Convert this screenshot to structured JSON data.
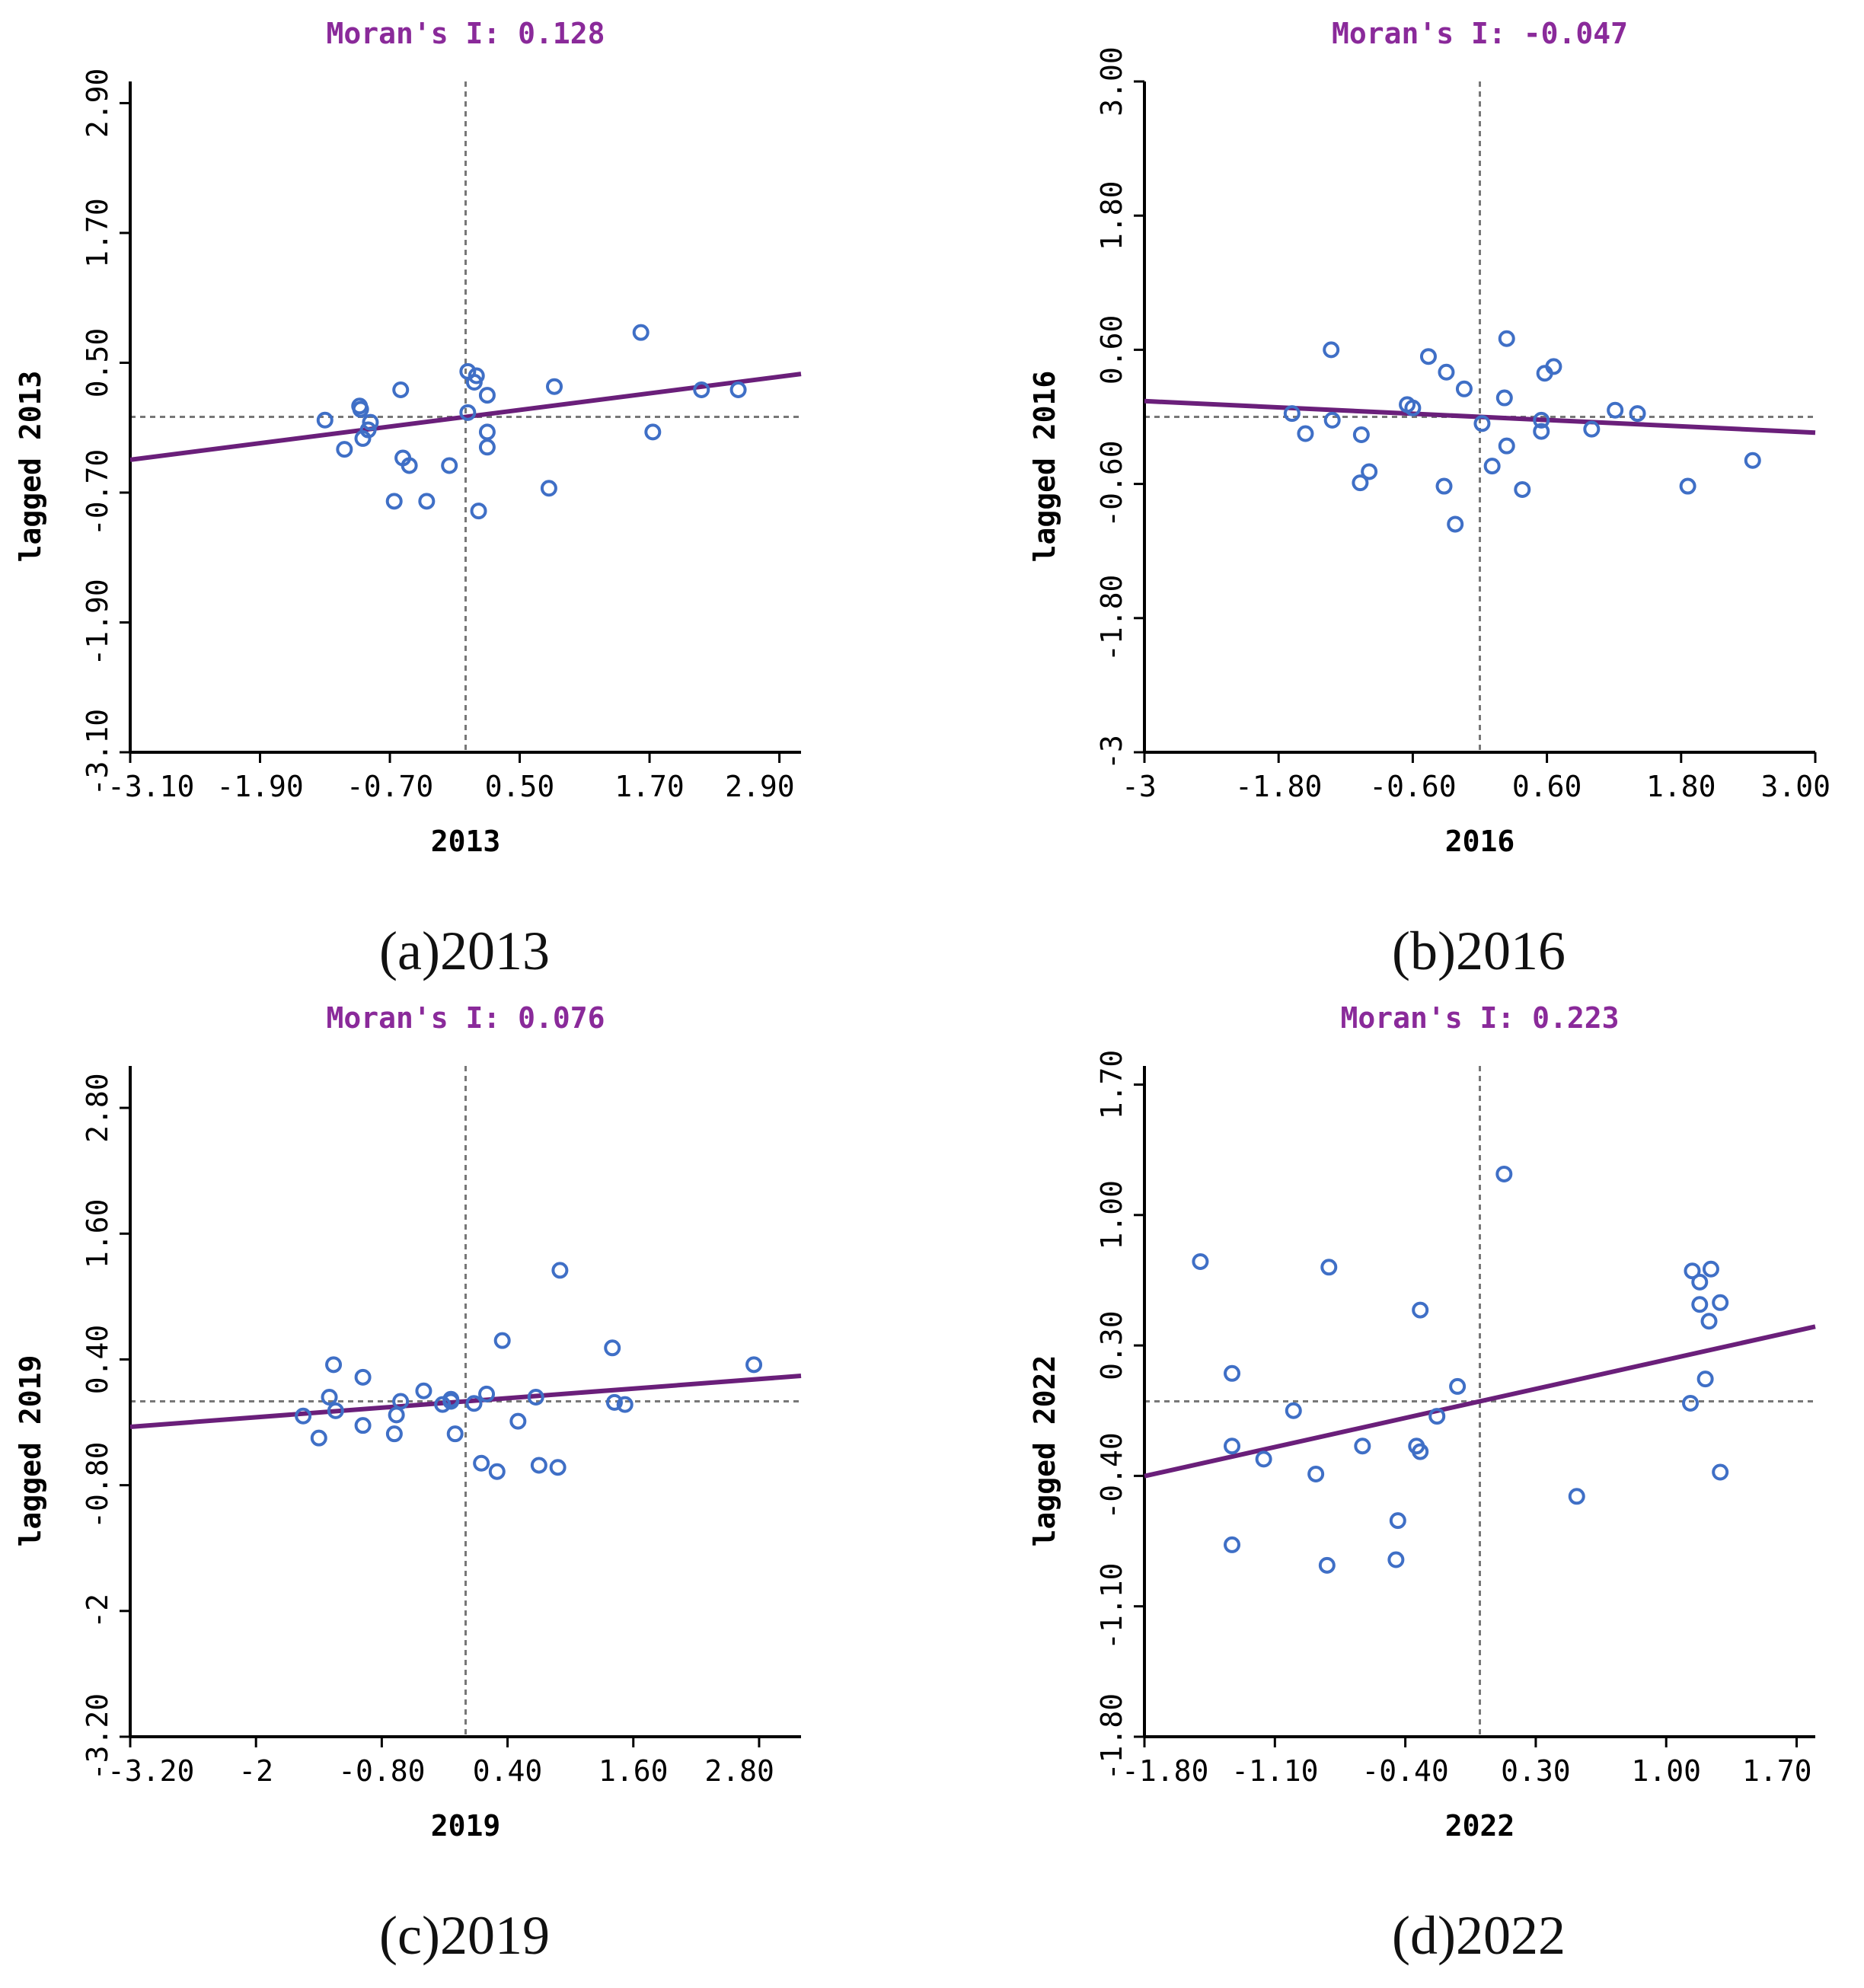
{
  "figure": {
    "panel_captions": [
      "(a)2013",
      "(b)2016",
      "(c)2019",
      "(d)2022"
    ]
  },
  "colors": {
    "point": "#3f6fc6",
    "regression": "#6a1f7a",
    "title": "#8a2a9a",
    "axis": "#000000",
    "reference_line": "#777777"
  },
  "chart_data": [
    {
      "type": "scatter",
      "title": "Moran's I: 0.128",
      "caption": "(a)2013",
      "xlabel": "2013",
      "ylabel": "lagged 2013",
      "xlim": [
        -3.1,
        3.1
      ],
      "ylim": [
        -3.1,
        3.1
      ],
      "xticks": [
        -3.1,
        -1.9,
        -0.7,
        0.5,
        1.7,
        2.9
      ],
      "xtick_labels": [
        "-3.10",
        "-1.90",
        "-0.70",
        "0.50",
        "1.70",
        "2.90"
      ],
      "yticks": [
        -3.1,
        -1.9,
        -0.7,
        0.5,
        1.7,
        2.9
      ],
      "ytick_labels": [
        "-3.10",
        "-1.90",
        "-0.70",
        "0.50",
        "1.70",
        "2.90"
      ],
      "moran_i": 0.128,
      "points": [
        {
          "x": -1.3,
          "y": -0.03
        },
        {
          "x": -1.12,
          "y": -0.3
        },
        {
          "x": -0.98,
          "y": 0.1
        },
        {
          "x": -0.97,
          "y": 0.07
        },
        {
          "x": -0.95,
          "y": -0.2
        },
        {
          "x": -0.9,
          "y": -0.12
        },
        {
          "x": -0.88,
          "y": -0.05
        },
        {
          "x": -0.6,
          "y": 0.25
        },
        {
          "x": -0.58,
          "y": -0.38
        },
        {
          "x": -0.52,
          "y": -0.45
        },
        {
          "x": -0.66,
          "y": -0.78
        },
        {
          "x": -0.36,
          "y": -0.78
        },
        {
          "x": -0.15,
          "y": -0.45
        },
        {
          "x": 0.02,
          "y": 0.42
        },
        {
          "x": 0.02,
          "y": 0.04
        },
        {
          "x": 0.1,
          "y": 0.38
        },
        {
          "x": 0.08,
          "y": 0.32
        },
        {
          "x": 0.2,
          "y": 0.2
        },
        {
          "x": 0.2,
          "y": -0.14
        },
        {
          "x": 0.2,
          "y": -0.28
        },
        {
          "x": 0.12,
          "y": -0.87
        },
        {
          "x": 0.82,
          "y": 0.28
        },
        {
          "x": 0.77,
          "y": -0.66
        },
        {
          "x": 1.62,
          "y": 0.78
        },
        {
          "x": 1.73,
          "y": -0.14
        },
        {
          "x": 2.18,
          "y": 0.25
        },
        {
          "x": 2.52,
          "y": 0.25
        }
      ],
      "fit": {
        "slope": 0.128,
        "intercept": 0.0
      }
    },
    {
      "type": "scatter",
      "title": "Moran's I: -0.047",
      "caption": "(b)2016",
      "xlabel": "2016",
      "ylabel": "lagged 2016",
      "xlim": [
        -3.0,
        3.0
      ],
      "ylim": [
        -3.0,
        3.0
      ],
      "xticks": [
        -3.0,
        -1.8,
        -0.6,
        0.6,
        1.8,
        3.0
      ],
      "xtick_labels": [
        "-3",
        "-1.80",
        "-0.60",
        "0.60",
        "1.80",
        "3.00"
      ],
      "yticks": [
        -3.0,
        -1.8,
        -0.6,
        0.6,
        1.8,
        3.0
      ],
      "ytick_labels": [
        "-3",
        "-1.80",
        "-0.60",
        "0.60",
        "1.80",
        "3.00"
      ],
      "moran_i": -0.047,
      "points": [
        {
          "x": -1.68,
          "y": 0.03
        },
        {
          "x": -1.56,
          "y": -0.15
        },
        {
          "x": -1.33,
          "y": 0.6
        },
        {
          "x": -1.32,
          "y": -0.03
        },
        {
          "x": -1.06,
          "y": -0.16
        },
        {
          "x": -1.07,
          "y": -0.59
        },
        {
          "x": -0.99,
          "y": -0.49
        },
        {
          "x": -0.65,
          "y": 0.11
        },
        {
          "x": -0.6,
          "y": 0.08
        },
        {
          "x": -0.46,
          "y": 0.54
        },
        {
          "x": -0.3,
          "y": 0.4
        },
        {
          "x": -0.14,
          "y": 0.25
        },
        {
          "x": -0.32,
          "y": -0.62
        },
        {
          "x": -0.22,
          "y": -0.96
        },
        {
          "x": 0.02,
          "y": -0.06
        },
        {
          "x": 0.11,
          "y": -0.44
        },
        {
          "x": 0.24,
          "y": 0.7
        },
        {
          "x": 0.22,
          "y": 0.17
        },
        {
          "x": 0.24,
          "y": -0.26
        },
        {
          "x": 0.38,
          "y": -0.65
        },
        {
          "x": 0.55,
          "y": -0.03
        },
        {
          "x": 0.55,
          "y": -0.13
        },
        {
          "x": 0.58,
          "y": 0.39
        },
        {
          "x": 0.66,
          "y": 0.45
        },
        {
          "x": 1.0,
          "y": -0.11
        },
        {
          "x": 1.21,
          "y": 0.06
        },
        {
          "x": 1.41,
          "y": 0.03
        },
        {
          "x": 1.86,
          "y": -0.62
        },
        {
          "x": 2.44,
          "y": -0.39
        }
      ],
      "fit": {
        "slope": -0.047,
        "intercept": 0.0
      }
    },
    {
      "type": "scatter",
      "title": "Moran's I: 0.076",
      "caption": "(c)2019",
      "xlabel": "2019",
      "ylabel": "lagged 2019",
      "xlim": [
        -3.2,
        3.2
      ],
      "ylim": [
        -3.2,
        3.2
      ],
      "xticks": [
        -3.2,
        -2.0,
        -0.8,
        0.4,
        1.6,
        2.8
      ],
      "xtick_labels": [
        "-3.20",
        "-2",
        "-0.80",
        "0.40",
        "1.60",
        "2.80"
      ],
      "yticks": [
        -3.2,
        -2.0,
        -0.8,
        0.4,
        1.6,
        2.8
      ],
      "ytick_labels": [
        "-3.20",
        "-2",
        "-0.80",
        "0.40",
        "1.60",
        "2.80"
      ],
      "moran_i": 0.076,
      "points": [
        {
          "x": -1.55,
          "y": -0.14
        },
        {
          "x": -1.4,
          "y": -0.35
        },
        {
          "x": -1.26,
          "y": 0.35
        },
        {
          "x": -1.3,
          "y": 0.04
        },
        {
          "x": -1.24,
          "y": -0.09
        },
        {
          "x": -0.98,
          "y": 0.23
        },
        {
          "x": -0.98,
          "y": -0.23
        },
        {
          "x": -0.68,
          "y": -0.31
        },
        {
          "x": -0.66,
          "y": -0.13
        },
        {
          "x": -0.62,
          "y": 0.0
        },
        {
          "x": -0.4,
          "y": 0.1
        },
        {
          "x": -0.22,
          "y": -0.03
        },
        {
          "x": -0.14,
          "y": 0.02
        },
        {
          "x": -0.14,
          "y": 0.0
        },
        {
          "x": -0.1,
          "y": -0.31
        },
        {
          "x": 0.08,
          "y": -0.02
        },
        {
          "x": 0.2,
          "y": 0.07
        },
        {
          "x": 0.15,
          "y": -0.59
        },
        {
          "x": 0.3,
          "y": -0.67
        },
        {
          "x": 0.35,
          "y": 0.58
        },
        {
          "x": 0.5,
          "y": -0.19
        },
        {
          "x": 0.67,
          "y": 0.04
        },
        {
          "x": 0.7,
          "y": -0.61
        },
        {
          "x": 0.88,
          "y": -0.63
        },
        {
          "x": 0.9,
          "y": 1.25
        },
        {
          "x": 1.4,
          "y": 0.51
        },
        {
          "x": 1.42,
          "y": -0.01
        },
        {
          "x": 1.52,
          "y": -0.03
        },
        {
          "x": 2.75,
          "y": 0.35
        }
      ],
      "fit": {
        "slope": 0.076,
        "intercept": 0.0
      }
    },
    {
      "type": "scatter",
      "title": "Moran's I: 0.223",
      "caption": "(d)2022",
      "xlabel": "2022",
      "ylabel": "lagged 2022",
      "xlim": [
        -1.8,
        1.8
      ],
      "ylim": [
        -1.8,
        1.8
      ],
      "xticks": [
        -1.8,
        -1.1,
        -0.4,
        0.3,
        1.0,
        1.7
      ],
      "xtick_labels": [
        "-1.80",
        "-1.10",
        "-0.40",
        "0.30",
        "1.00",
        "1.70"
      ],
      "yticks": [
        -1.8,
        -1.1,
        -0.4,
        0.3,
        1.0,
        1.7
      ],
      "ytick_labels": [
        "-1.80",
        "-1.10",
        "-0.40",
        "0.30",
        "1.00",
        "1.70"
      ],
      "moran_i": 0.223,
      "points": [
        {
          "x": -1.5,
          "y": 0.75
        },
        {
          "x": -1.33,
          "y": 0.15
        },
        {
          "x": -1.33,
          "y": -0.24
        },
        {
          "x": -1.33,
          "y": -0.77
        },
        {
          "x": -1.16,
          "y": -0.31
        },
        {
          "x": -1.0,
          "y": -0.05
        },
        {
          "x": -0.88,
          "y": -0.39
        },
        {
          "x": -0.81,
          "y": 0.72
        },
        {
          "x": -0.82,
          "y": -0.88
        },
        {
          "x": -0.63,
          "y": -0.24
        },
        {
          "x": -0.44,
          "y": -0.64
        },
        {
          "x": -0.45,
          "y": -0.85
        },
        {
          "x": -0.32,
          "y": 0.49
        },
        {
          "x": -0.34,
          "y": -0.24
        },
        {
          "x": -0.32,
          "y": -0.27
        },
        {
          "x": -0.23,
          "y": -0.08
        },
        {
          "x": -0.12,
          "y": 0.08
        },
        {
          "x": 0.13,
          "y": 1.22
        },
        {
          "x": 0.52,
          "y": -0.51
        },
        {
          "x": 1.14,
          "y": 0.7
        },
        {
          "x": 1.18,
          "y": 0.64
        },
        {
          "x": 1.24,
          "y": 0.71
        },
        {
          "x": 1.18,
          "y": 0.52
        },
        {
          "x": 1.23,
          "y": 0.43
        },
        {
          "x": 1.29,
          "y": 0.53
        },
        {
          "x": 1.21,
          "y": 0.12
        },
        {
          "x": 1.13,
          "y": -0.01
        },
        {
          "x": 1.29,
          "y": -0.38
        }
      ],
      "fit": {
        "slope": 0.223,
        "intercept": 0.0
      }
    }
  ]
}
